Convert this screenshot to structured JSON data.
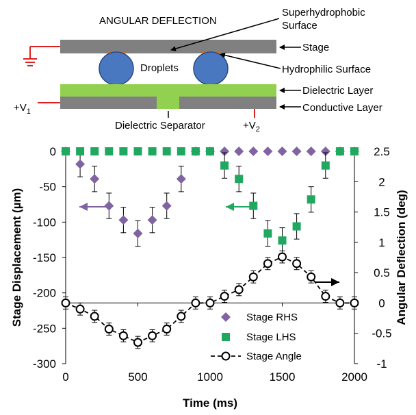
{
  "diagram": {
    "title": "ANGULAR DEFLECTION",
    "labels": {
      "superhydrophobic_line1": "Superhydrophobic",
      "superhydrophobic_line2": "Surface",
      "stage": "Stage",
      "droplets": "Droplets",
      "hydrophilic": "Hydrophilic Surface",
      "dielectric_layer": "Dielectric Layer",
      "conductive_layer": "Conductive Layer",
      "dielectric_separator": "Dielectric Separator",
      "v1_base": "+V",
      "v1_sub": "1",
      "v2_base": "+V",
      "v2_sub": "2"
    },
    "colors": {
      "plate": "#808080",
      "dielectric": "#92d050",
      "droplet": "#4a78c0",
      "hydrophilic": "#e07020",
      "wire": "#e02020"
    }
  },
  "chart_data": {
    "type": "scatter",
    "xlabel": "Time (ms)",
    "ylabel": "Stage Displacement (µm)",
    "y2label": "Angular Deflection (deg)",
    "xlim": [
      0,
      2000
    ],
    "ylim": [
      -300,
      0
    ],
    "y2lim": [
      -1,
      2.5
    ],
    "x_ticks": [
      "0",
      "500",
      "1000",
      "1500",
      "2000"
    ],
    "y_ticks": [
      "0",
      "-50",
      "-100",
      "-150",
      "-200",
      "-250",
      "-300"
    ],
    "y2_ticks": [
      "2.5",
      "2",
      "1.5",
      "1",
      "0.5",
      "0",
      "-0.5",
      "-1"
    ],
    "legend_position": "bottom-right",
    "series": [
      {
        "name": "Stage RHS",
        "axis": "left",
        "marker": "diamond",
        "color": "#8064a2",
        "x": [
          0,
          100,
          200,
          300,
          400,
          500,
          600,
          700,
          800,
          900,
          1000,
          1100,
          1200,
          1300,
          1400,
          1500,
          1600,
          1700,
          1800,
          1900,
          2000
        ],
        "y": [
          0,
          -18,
          -39,
          -77,
          -97,
          -116,
          -97,
          -77,
          -39,
          0,
          0,
          0,
          0,
          0,
          0,
          0,
          0,
          0,
          0,
          0,
          0
        ],
        "error": 18
      },
      {
        "name": "Stage LHS",
        "axis": "left",
        "marker": "square",
        "color": "#20a860",
        "x": [
          0,
          100,
          200,
          300,
          400,
          500,
          600,
          700,
          800,
          900,
          1000,
          1100,
          1200,
          1300,
          1400,
          1500,
          1600,
          1700,
          1800,
          1900,
          2000
        ],
        "y": [
          0,
          0,
          0,
          0,
          0,
          0,
          0,
          0,
          0,
          0,
          0,
          -20,
          -39,
          -77,
          -116,
          -126,
          -106,
          -68,
          -20,
          0,
          0
        ],
        "error": 18
      },
      {
        "name": "Stage Angle",
        "axis": "right",
        "marker": "circle",
        "line": "dashed",
        "color": "#000000",
        "x": [
          0,
          100,
          200,
          300,
          400,
          500,
          600,
          700,
          800,
          900,
          1000,
          1100,
          1200,
          1300,
          1400,
          1500,
          1600,
          1700,
          1800,
          1900,
          2000
        ],
        "y": [
          0,
          -0.1,
          -0.22,
          -0.43,
          -0.54,
          -0.65,
          -0.54,
          -0.43,
          -0.22,
          0,
          0,
          0.11,
          0.22,
          0.43,
          0.65,
          0.76,
          0.65,
          0.43,
          0.11,
          0,
          0
        ],
        "error": 0.1
      }
    ]
  }
}
